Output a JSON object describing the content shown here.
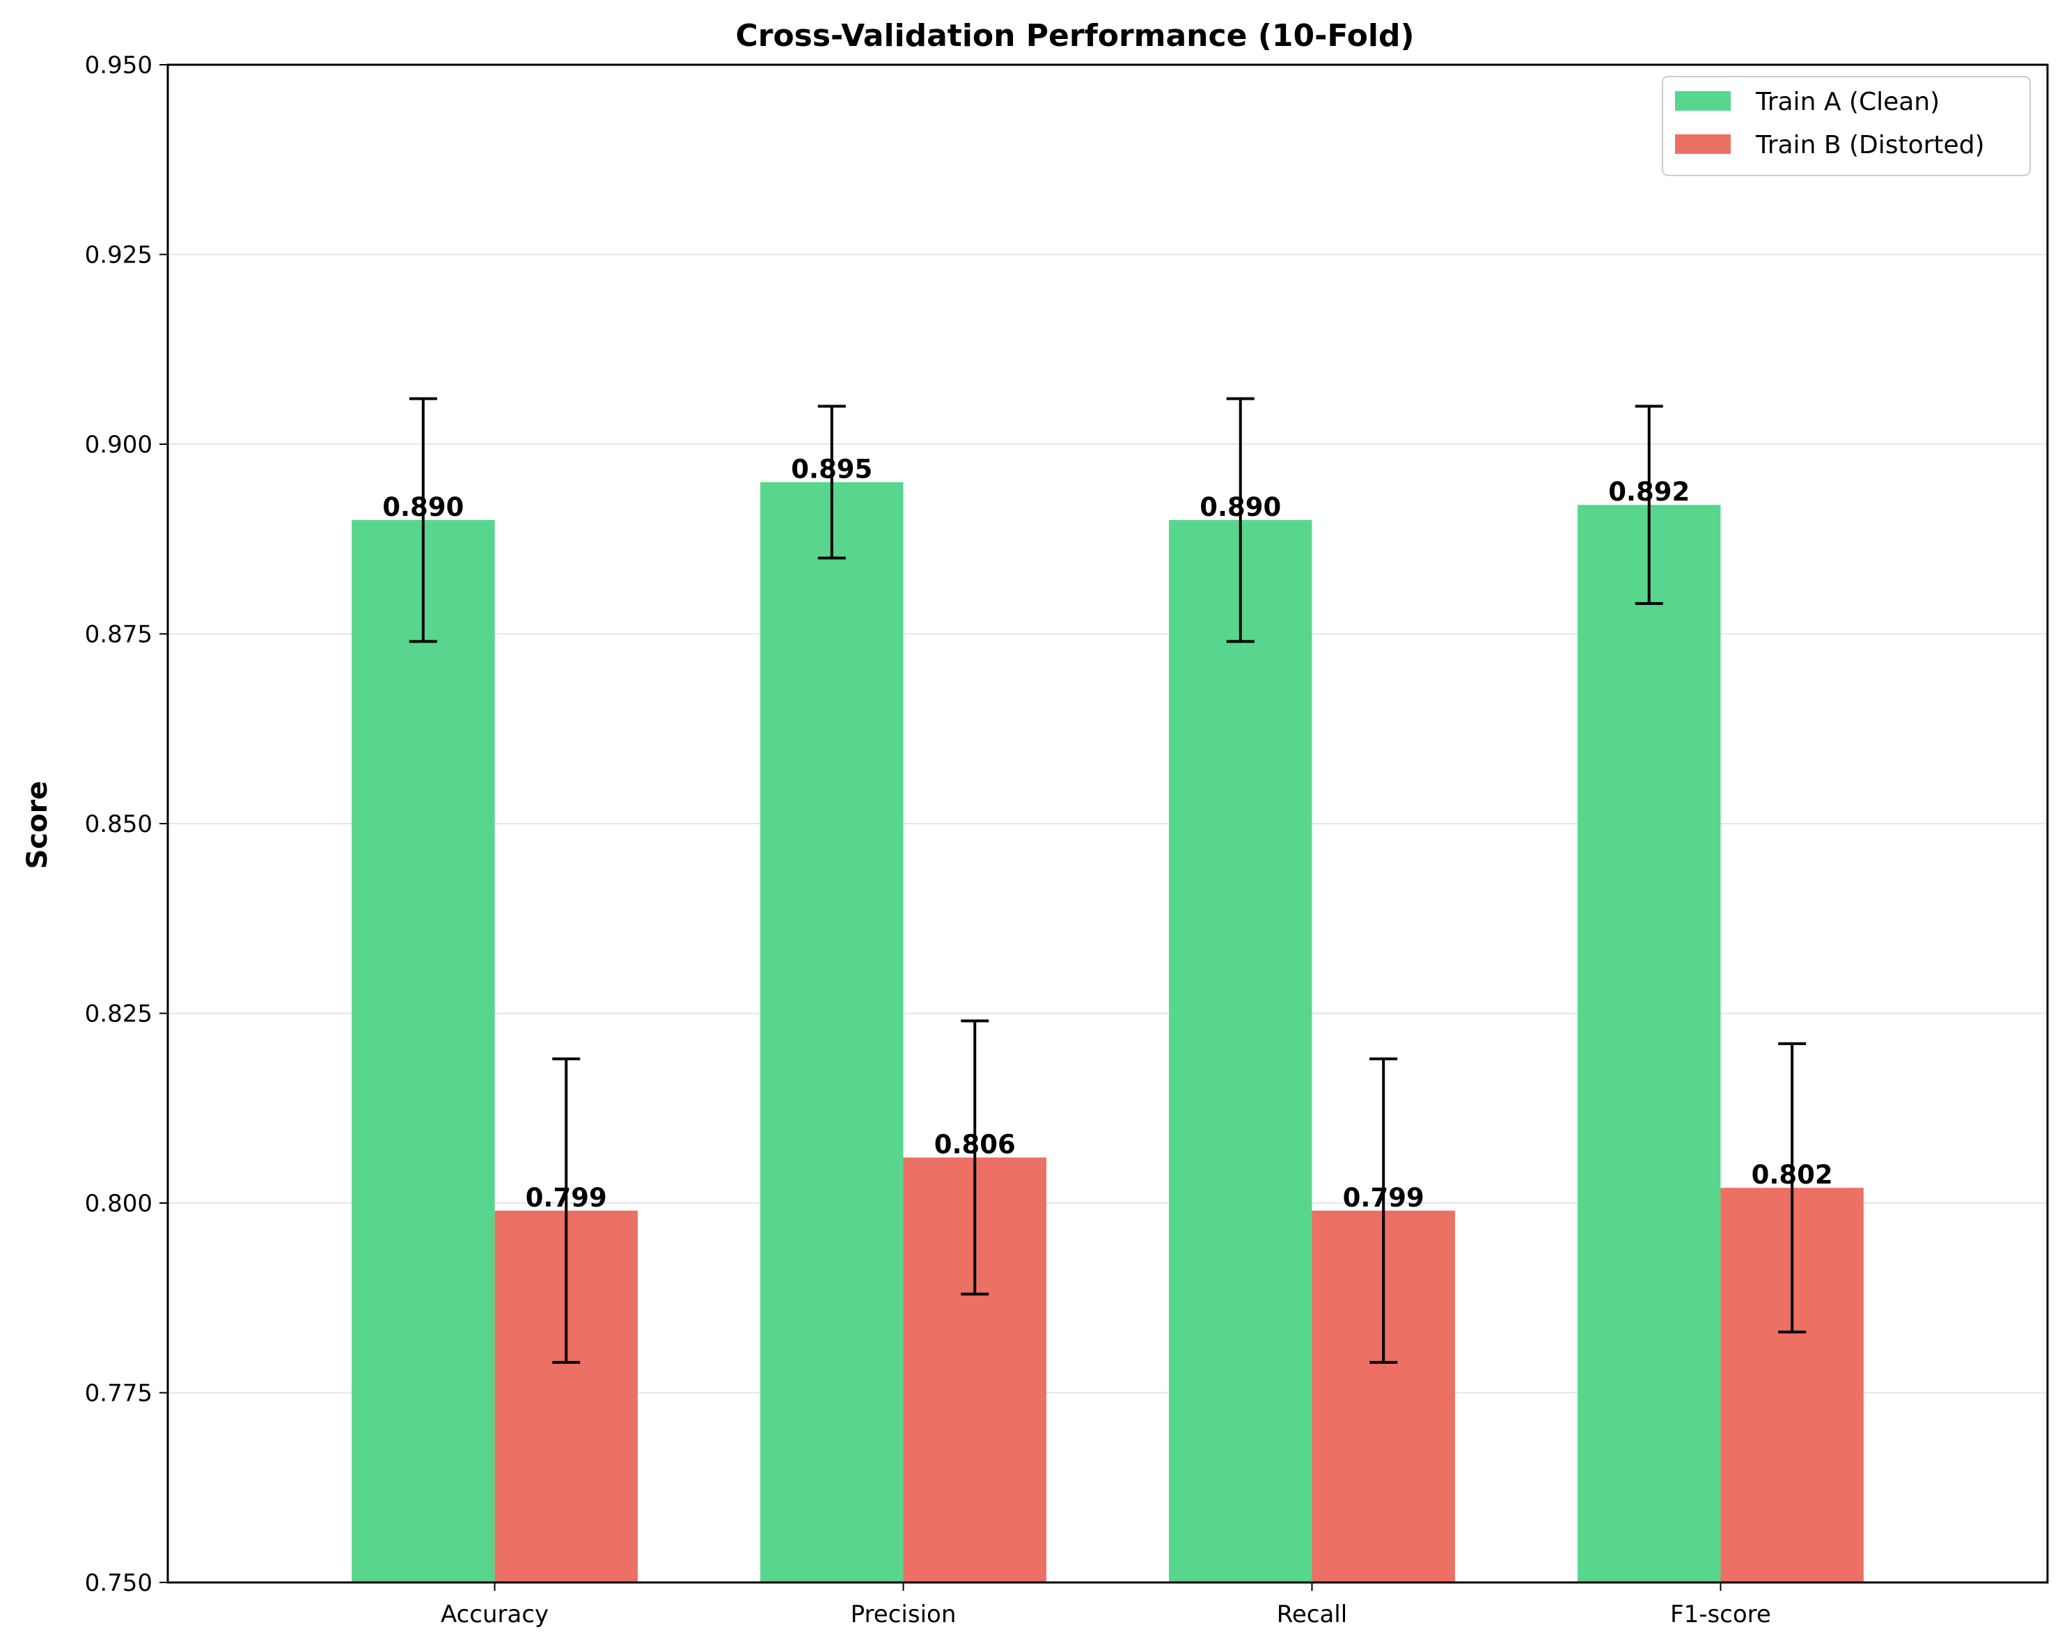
{
  "chart_data": {
    "type": "bar",
    "title": "Cross-Validation Performance (10-Fold)",
    "xlabel": "",
    "ylabel": "Score",
    "ylim": [
      0.75,
      0.95
    ],
    "yticks": [
      "0.750",
      "0.775",
      "0.800",
      "0.825",
      "0.850",
      "0.875",
      "0.900",
      "0.925",
      "0.950"
    ],
    "categories": [
      "Accuracy",
      "Precision",
      "Recall",
      "F1-score"
    ],
    "grid": "horizontal",
    "legend_position": "top-right",
    "series": [
      {
        "name": "Train A (Clean)",
        "color": "#58d68d",
        "values": [
          0.89,
          0.895,
          0.89,
          0.892
        ],
        "value_labels": [
          "0.890",
          "0.895",
          "0.890",
          "0.892"
        ],
        "errors": [
          0.016,
          0.01,
          0.016,
          0.013
        ]
      },
      {
        "name": "Train B (Distorted)",
        "color": "#ec7063",
        "values": [
          0.799,
          0.806,
          0.799,
          0.802
        ],
        "value_labels": [
          "0.799",
          "0.806",
          "0.799",
          "0.802"
        ],
        "errors": [
          0.02,
          0.018,
          0.02,
          0.019
        ]
      }
    ]
  }
}
